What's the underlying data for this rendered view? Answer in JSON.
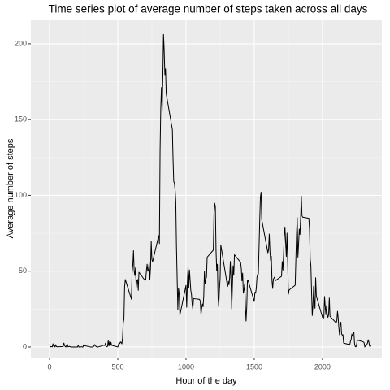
{
  "chart_data": {
    "type": "line",
    "title": "Time series plot of average number of steps taken across all days",
    "x_label": "Hour of the day",
    "y_label": "Average number of steps",
    "xlim": [
      -137,
      2435
    ],
    "ylim": [
      -7,
      215.5
    ],
    "xticks": [
      0,
      500,
      1000,
      1500,
      2000
    ],
    "yticks": [
      0,
      50,
      100,
      150,
      200
    ],
    "grid": true,
    "x": [
      0,
      5,
      10,
      15,
      20,
      25,
      30,
      35,
      40,
      45,
      50,
      55,
      100,
      105,
      110,
      115,
      120,
      125,
      130,
      135,
      140,
      145,
      150,
      155,
      200,
      205,
      210,
      215,
      220,
      225,
      230,
      235,
      240,
      245,
      250,
      255,
      300,
      305,
      310,
      315,
      320,
      325,
      330,
      335,
      340,
      345,
      350,
      355,
      400,
      405,
      410,
      415,
      420,
      425,
      430,
      435,
      440,
      445,
      450,
      455,
      500,
      505,
      510,
      515,
      520,
      525,
      530,
      535,
      540,
      545,
      550,
      555,
      600,
      605,
      610,
      615,
      620,
      625,
      630,
      635,
      640,
      645,
      650,
      655,
      700,
      705,
      710,
      715,
      720,
      725,
      730,
      735,
      740,
      745,
      750,
      755,
      800,
      805,
      810,
      815,
      820,
      825,
      830,
      835,
      840,
      845,
      850,
      855,
      900,
      905,
      910,
      915,
      920,
      925,
      930,
      935,
      940,
      945,
      950,
      955,
      1000,
      1005,
      1010,
      1015,
      1020,
      1025,
      1030,
      1035,
      1040,
      1045,
      1050,
      1055,
      1100,
      1105,
      1110,
      1115,
      1120,
      1125,
      1130,
      1135,
      1140,
      1145,
      1150,
      1155,
      1200,
      1205,
      1210,
      1215,
      1220,
      1225,
      1230,
      1235,
      1240,
      1245,
      1250,
      1255,
      1300,
      1305,
      1310,
      1315,
      1320,
      1325,
      1330,
      1335,
      1340,
      1345,
      1350,
      1355,
      1400,
      1405,
      1410,
      1415,
      1420,
      1425,
      1430,
      1435,
      1440,
      1445,
      1450,
      1455,
      1500,
      1505,
      1510,
      1515,
      1520,
      1525,
      1530,
      1535,
      1540,
      1545,
      1550,
      1555,
      1600,
      1605,
      1610,
      1615,
      1620,
      1625,
      1630,
      1635,
      1640,
      1645,
      1650,
      1655,
      1700,
      1705,
      1710,
      1715,
      1720,
      1725,
      1730,
      1735,
      1740,
      1745,
      1750,
      1755,
      1800,
      1805,
      1810,
      1815,
      1820,
      1825,
      1830,
      1835,
      1840,
      1845,
      1850,
      1855,
      1900,
      1905,
      1910,
      1915,
      1920,
      1925,
      1930,
      1935,
      1940,
      1945,
      1950,
      1955,
      2000,
      2005,
      2010,
      2015,
      2020,
      2025,
      2030,
      2035,
      2040,
      2045,
      2050,
      2055,
      2100,
      2105,
      2110,
      2115,
      2120,
      2125,
      2130,
      2135,
      2140,
      2145,
      2150,
      2155,
      2200,
      2205,
      2210,
      2215,
      2220,
      2225,
      2230,
      2235,
      2240,
      2245,
      2250,
      2255,
      2300,
      2305,
      2310,
      2315,
      2320,
      2325,
      2330,
      2335,
      2340,
      2345,
      2350,
      2355
    ],
    "series": [
      {
        "color": "#000000",
        "values": [
          1.7,
          0.3,
          0.1,
          0.2,
          0.1,
          2.1,
          0.5,
          0.9,
          0,
          1.5,
          0.3,
          0.1,
          0.3,
          2.6,
          1.1,
          0.2,
          0,
          1.1,
          1.8,
          0.2,
          0.2,
          0.4,
          0.3,
          0,
          0,
          0,
          1.1,
          0,
          0,
          0.1,
          0,
          0.2,
          0,
          0,
          1.5,
          0.9,
          0,
          0,
          0,
          0,
          0.2,
          0.6,
          1.6,
          0.6,
          0.5,
          0.1,
          0,
          0,
          1.2,
          0.9,
          2.6,
          0,
          0.3,
          0.4,
          4.1,
          0.7,
          3.5,
          0.8,
          3.1,
          1.1,
          0,
          1.6,
          3,
          2.2,
          3.3,
          3,
          2.1,
          6.1,
          16,
          18.3,
          39.5,
          44.5,
          31.5,
          49.3,
          53.8,
          63.5,
          50,
          47.1,
          52.2,
          39.3,
          44.1,
          44.5,
          37.4,
          49.3,
          43.8,
          44.4,
          50.5,
          54.5,
          49.9,
          51,
          55.7,
          44.3,
          52.3,
          69.5,
          57.8,
          56.2,
          73.4,
          68.2,
          129.4,
          157.5,
          171.2,
          155.4,
          177.3,
          206.2,
          195.9,
          179.6,
          183.4,
          167,
          143.5,
          124,
          109.1,
          108.1,
          103.7,
          96,
          66.2,
          45.2,
          24.8,
          38.8,
          35,
          21,
          40.6,
          26.1,
          42.4,
          52.7,
          38.9,
          50.8,
          44.3,
          37.4,
          34.7,
          28.3,
          25.1,
          31.9,
          31.4,
          29.7,
          21.3,
          25.5,
          28.4,
          26.5,
          33.4,
          50,
          42,
          44.6,
          46,
          59.2,
          63.9,
          87.7,
          94.8,
          92.8,
          63.4,
          50.2,
          54.5,
          32.4,
          26.5,
          37.7,
          45.1,
          67.3,
          42.3,
          39.9,
          43.3,
          41,
          46.2,
          56.4,
          42.8,
          25.1,
          40,
          53.5,
          47.3,
          60.8,
          55.8,
          52,
          43.6,
          48.7,
          35.5,
          37.5,
          41.8,
          27.5,
          17.1,
          26.1,
          43.6,
          43.8,
          30,
          36.1,
          35.5,
          38.8,
          46,
          47.8,
          48.1,
          65.3,
          82.9,
          98.7,
          102.1,
          84,
          62.1,
          64.1,
          74.5,
          63.2,
          56.9,
          59.8,
          43.9,
          38.6,
          44.7,
          45.5,
          46.2,
          43.7,
          46.6,
          56.3,
          50.7,
          61.2,
          73.4,
          79.1,
          68.9,
          59.7,
          75.1,
          56.5,
          34.8,
          37.5,
          40.7,
          58,
          74.7,
          85.3,
          59.3,
          67.8,
          77.7,
          74.2,
          85.3,
          99.5,
          86.6,
          85.6,
          84.9,
          77.8,
          58,
          53.4,
          36.3,
          20.7,
          27.4,
          40,
          30.2,
          25.5,
          45.7,
          33.5,
          19.6,
          19,
          19.3,
          33.3,
          26.8,
          21.2,
          27.3,
          21.3,
          19.5,
          21.3,
          32.3,
          20.2,
          15.9,
          17.2,
          23.5,
          19.2,
          12.5,
          8,
          14.7,
          16.3,
          8.7,
          7.8,
          8.1,
          2.6,
          1.5,
          3.7,
          4.8,
          8.5,
          7.1,
          8.7,
          9.8,
          2.2,
          0.3,
          0.1,
          1.6,
          4.6,
          3.3,
          2.8,
          0,
          0.8,
          1,
          1.6,
          2.6,
          4.7,
          3.3,
          0.6,
          0.2,
          1.1
        ]
      }
    ]
  }
}
